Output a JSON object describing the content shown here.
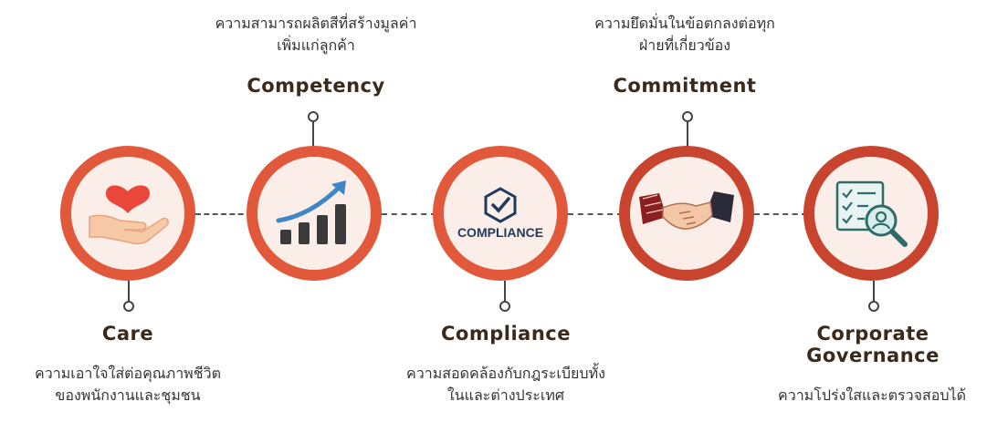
{
  "colors": {
    "ring": "#e2583a",
    "ring_dark": "#c8442e",
    "fill": "#fbeee8",
    "text": "#3a2a1c"
  },
  "items": [
    {
      "key": "care",
      "title": "Care",
      "desc_line1": "ความเอาใจใส่ต่อคุณภาพชีวิต",
      "desc_line2": "ของพนักงานและชุมชน",
      "icon": "heart-hand-icon"
    },
    {
      "key": "competency",
      "title": "Competency",
      "desc_line1": "ความสามารถผลิตสีที่สร้างมูลค่า",
      "desc_line2": "เพิ่มแก่ลูกค้า",
      "icon": "growth-chart-icon"
    },
    {
      "key": "compliance",
      "title": "Compliance",
      "desc_line1": "ความสอดคล้องกับกฎระเบียบทั้ง",
      "desc_line2": "ในและต่างประเทศ",
      "icon": "compliance-badge-icon",
      "icon_text": "COMPLIANCE"
    },
    {
      "key": "commitment",
      "title": "Commitment",
      "desc_line1": "ความยึดมั่นในข้อตกลงต่อทุก",
      "desc_line2": "ฝ่ายที่เกี่ยวข้อง",
      "icon": "handshake-icon"
    },
    {
      "key": "governance",
      "title_line1": "Corporate",
      "title_line2": "Governance",
      "desc_line1": "ความโปร่งใสและตรวจสอบได้",
      "icon": "audit-search-icon"
    }
  ]
}
